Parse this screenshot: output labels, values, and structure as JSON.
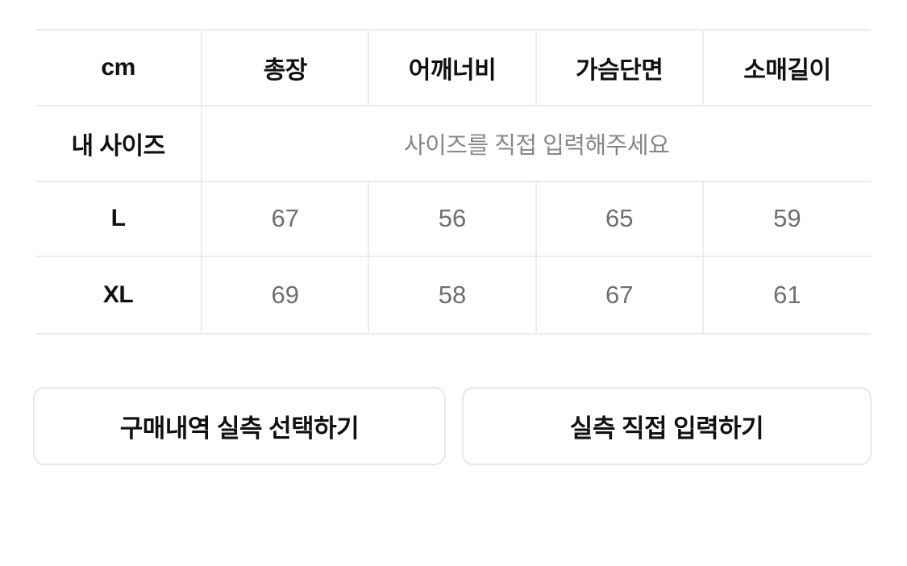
{
  "table": {
    "unit_header": "cm",
    "columns": [
      "총장",
      "어깨너비",
      "가슴단면",
      "소매길이"
    ],
    "my_size": {
      "label": "내 사이즈",
      "placeholder": "사이즈를 직접 입력해주세요"
    },
    "rows": [
      {
        "label": "L",
        "values": [
          "67",
          "56",
          "65",
          "59"
        ]
      },
      {
        "label": "XL",
        "values": [
          "69",
          "58",
          "67",
          "61"
        ]
      }
    ]
  },
  "buttons": {
    "select_from_purchases": "구매내역 실측 선택하기",
    "enter_directly": "실측 직접 입력하기"
  },
  "colors": {
    "border": "#ececec",
    "label_text": "#111111",
    "value_text": "#6f6f6f",
    "placeholder_text": "#878787",
    "button_border": "#e8e8e8"
  }
}
